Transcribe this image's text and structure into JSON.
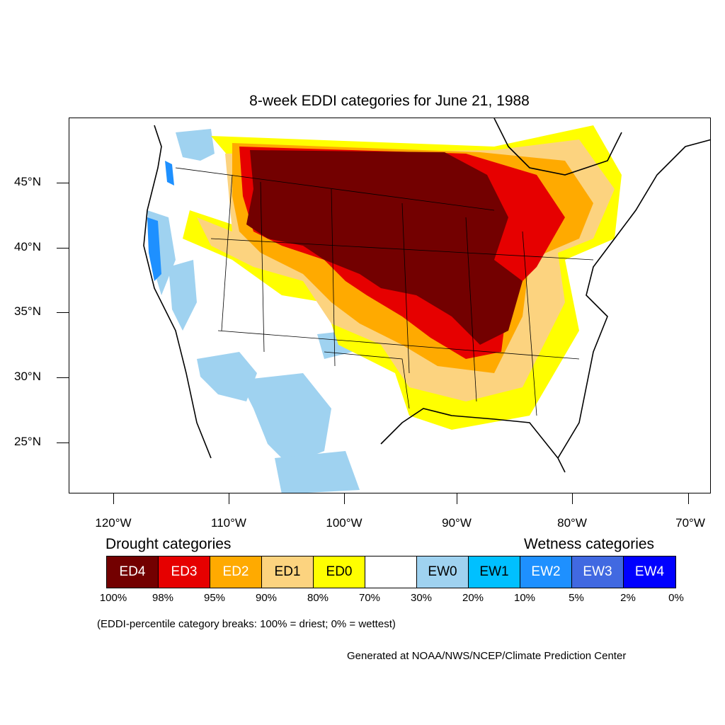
{
  "title": "8-week EDDI categories for June 21, 1988",
  "lat_labels": [
    "45°N",
    "40°N",
    "35°N",
    "30°N",
    "25°N"
  ],
  "lon_labels": [
    "120°W",
    "110°W",
    "100°W",
    "90°W",
    "80°W",
    "70°W"
  ],
  "legend": {
    "drought_heading": "Drought categories",
    "wetness_heading": "Wetness categories",
    "categories": [
      {
        "label": "ED4",
        "color": "#730000",
        "text_color": "#ffffff"
      },
      {
        "label": "ED3",
        "color": "#e60000",
        "text_color": "#ffffff"
      },
      {
        "label": "ED2",
        "color": "#ffaa00",
        "text_color": "#ffffff"
      },
      {
        "label": "ED1",
        "color": "#fcd37f",
        "text_color": "#000000"
      },
      {
        "label": "ED0",
        "color": "#ffff00",
        "text_color": "#000000"
      },
      {
        "label": "",
        "color": "#ffffff",
        "text_color": "#000000"
      },
      {
        "label": "EW0",
        "color": "#9fd2f0",
        "text_color": "#000000"
      },
      {
        "label": "EW1",
        "color": "#00c0ff",
        "text_color": "#000000"
      },
      {
        "label": "EW2",
        "color": "#1e90ff",
        "text_color": "#ffffff"
      },
      {
        "label": "EW3",
        "color": "#4169e1",
        "text_color": "#ffffff"
      },
      {
        "label": "EW4",
        "color": "#0000ff",
        "text_color": "#ffffff"
      }
    ],
    "percentiles": [
      "100%",
      "98%",
      "95%",
      "90%",
      "80%",
      "70%",
      "30%",
      "20%",
      "10%",
      "5%",
      "2%",
      "0%"
    ]
  },
  "note": "(EDDI-percentile category breaks: 100% = driest; 0% = wettest)",
  "credit": "Generated at NOAA/NWS/NCEP/Climate Prediction Center"
}
